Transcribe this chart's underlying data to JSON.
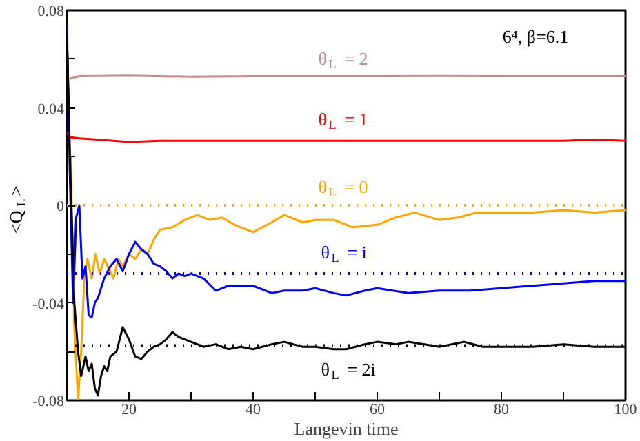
{
  "chart_data": {
    "type": "line",
    "xlabel": "Langevin time",
    "ylabel": "<Q$_{L}$>",
    "xlim": [
      10,
      100
    ],
    "ylim": [
      -0.08,
      0.08
    ],
    "xticks": [
      {
        "value": 20,
        "label": "20"
      },
      {
        "value": 30,
        "label": null
      },
      {
        "value": 40,
        "label": "40"
      },
      {
        "value": 50,
        "label": null
      },
      {
        "value": 60,
        "label": "60"
      },
      {
        "value": 70,
        "label": null
      },
      {
        "value": 80,
        "label": "80"
      },
      {
        "value": 90,
        "label": null
      },
      {
        "value": 100,
        "label": "100"
      }
    ],
    "yticks": [
      {
        "value": -0.08,
        "label": "-0.08"
      },
      {
        "value": -0.06,
        "label": null
      },
      {
        "value": -0.04,
        "label": "-0.04"
      },
      {
        "value": -0.02,
        "label": null
      },
      {
        "value": 0,
        "label": "0"
      },
      {
        "value": 0.02,
        "label": null
      },
      {
        "value": 0.04,
        "label": "0.04"
      },
      {
        "value": 0.06,
        "label": null
      },
      {
        "value": 0.08,
        "label": "0.08"
      }
    ],
    "grid": false,
    "line_style": "solid",
    "series": [
      {
        "color": "#bc8f8f",
        "x": [
          10.5,
          12,
          20,
          30,
          40,
          50,
          60,
          70,
          80,
          90,
          100
        ],
        "values": [
          0.052,
          0.053,
          0.0532,
          0.0528,
          0.053,
          0.053,
          0.053,
          0.0531,
          0.053,
          0.053,
          0.053
        ]
      },
      {
        "color": "#ff0000",
        "x": [
          10,
          10.5,
          12,
          15,
          20,
          25,
          30,
          40,
          50,
          60,
          70,
          80,
          90,
          95,
          100
        ],
        "values": [
          0.03,
          0.028,
          0.0275,
          0.027,
          0.026,
          0.0265,
          0.0265,
          0.0265,
          0.0265,
          0.0265,
          0.0265,
          0.0265,
          0.0265,
          0.027,
          0.0265
        ]
      },
      {
        "color": "#ffa500",
        "x": [
          10.6,
          11.2,
          11.8,
          12.3,
          12.8,
          13.3,
          14,
          14.6,
          15.3,
          16,
          16.8,
          17.5,
          18.3,
          19,
          20,
          21,
          22,
          23,
          24,
          25,
          27,
          29,
          31,
          33,
          35,
          37,
          40,
          43,
          45,
          48,
          50,
          53,
          56,
          60,
          63,
          66,
          70,
          73,
          76,
          80,
          85,
          90,
          95,
          100
        ],
        "values": [
          0.02,
          -0.05,
          -0.08,
          -0.06,
          -0.03,
          -0.022,
          -0.03,
          -0.02,
          -0.028,
          -0.022,
          -0.026,
          -0.03,
          -0.022,
          -0.025,
          -0.02,
          -0.022,
          -0.018,
          -0.02,
          -0.014,
          -0.01,
          -0.009,
          -0.006,
          -0.004,
          -0.006,
          -0.005,
          -0.008,
          -0.011,
          -0.007,
          -0.004,
          -0.007,
          -0.006,
          -0.006,
          -0.009,
          -0.008,
          -0.005,
          -0.003,
          -0.006,
          -0.005,
          -0.003,
          -0.003,
          -0.003,
          -0.002,
          -0.003,
          -0.002
        ]
      },
      {
        "color": "#0000ff",
        "x": [
          10,
          10.5,
          11,
          11.5,
          12,
          12.5,
          13,
          13.5,
          14,
          14.5,
          15,
          16,
          17,
          18,
          19,
          20,
          21,
          22,
          23,
          24,
          25,
          26,
          27,
          28,
          29,
          30,
          32,
          34,
          36,
          38,
          40,
          43,
          45,
          48,
          50,
          53,
          55,
          58,
          60,
          65,
          70,
          75,
          80,
          85,
          90,
          95,
          100
        ],
        "values": [
          0.075,
          0.01,
          -0.04,
          -0.005,
          0,
          -0.03,
          -0.025,
          -0.045,
          -0.046,
          -0.04,
          -0.038,
          -0.03,
          -0.025,
          -0.022,
          -0.027,
          -0.02,
          -0.015,
          -0.018,
          -0.02,
          -0.024,
          -0.025,
          -0.027,
          -0.03,
          -0.028,
          -0.029,
          -0.028,
          -0.03,
          -0.035,
          -0.033,
          -0.033,
          -0.033,
          -0.036,
          -0.035,
          -0.035,
          -0.034,
          -0.036,
          -0.037,
          -0.035,
          -0.034,
          -0.036,
          -0.035,
          -0.035,
          -0.034,
          -0.033,
          -0.032,
          -0.031,
          -0.031
        ]
      },
      {
        "color": "#000000",
        "x": [
          10,
          10.6,
          11.2,
          11.8,
          12.3,
          13,
          13.5,
          14,
          14.5,
          15,
          15.5,
          16,
          16.5,
          17,
          18,
          19,
          20,
          21,
          22,
          23,
          24,
          25,
          26,
          27,
          28,
          30,
          32,
          34,
          36,
          38,
          40,
          43,
          45,
          48,
          50,
          53,
          55,
          58,
          60,
          63,
          65,
          70,
          74,
          77,
          80,
          85,
          90,
          95,
          100
        ],
        "values": [
          0.07,
          0.01,
          -0.04,
          -0.06,
          -0.07,
          -0.062,
          -0.068,
          -0.065,
          -0.075,
          -0.078,
          -0.07,
          -0.066,
          -0.068,
          -0.062,
          -0.06,
          -0.05,
          -0.055,
          -0.062,
          -0.063,
          -0.06,
          -0.058,
          -0.057,
          -0.055,
          -0.052,
          -0.054,
          -0.056,
          -0.058,
          -0.057,
          -0.059,
          -0.058,
          -0.059,
          -0.057,
          -0.056,
          -0.058,
          -0.058,
          -0.059,
          -0.059,
          -0.057,
          -0.056,
          -0.057,
          -0.056,
          -0.058,
          -0.056,
          -0.058,
          -0.058,
          -0.058,
          -0.057,
          -0.058,
          -0.058
        ]
      }
    ],
    "ref_lines": [
      {
        "axis": "y",
        "value": 0,
        "color": "#ffa500",
        "line_style": "dotted"
      },
      {
        "axis": "y",
        "value": -0.028,
        "color": "#0000ff",
        "line_style": "dotted"
      },
      {
        "axis": "y",
        "value": -0.0575,
        "color": "#000000",
        "line_style": "dotted"
      }
    ],
    "annotations": [
      "θ$_{L}$ = 2",
      "θ$_{L}$ = 1",
      "θ$_{L}$ = 0",
      "θ$_{L}$ = i",
      "θ$_{L}$ = 2i",
      "6⁴, β=6.1"
    ]
  }
}
